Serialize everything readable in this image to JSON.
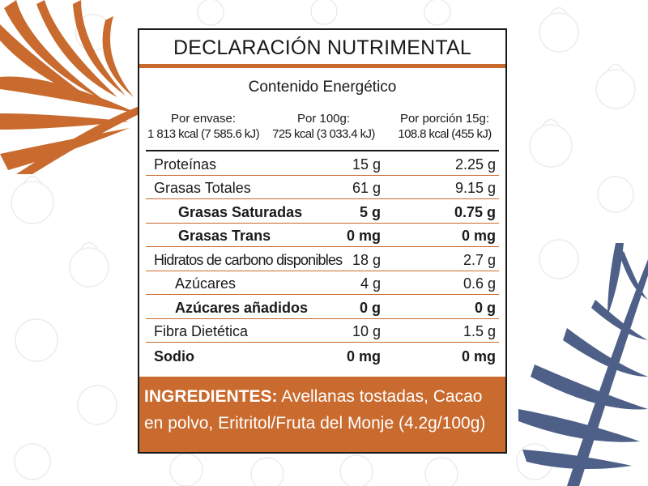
{
  "colors": {
    "accent": "#c96a2e",
    "leaf_orange": "#c96a2e",
    "leaf_blue": "#4e6088",
    "text": "#1a1a1a"
  },
  "title": "DECLARACIÓN NUTRIMENTAL",
  "energy": {
    "title": "Contenido Energético",
    "columns": [
      {
        "label": "Por envase:",
        "value": "1 813 kcal (7 585.6 kJ)"
      },
      {
        "label": "Por 100g:",
        "value": "725 kcal (3 033.4 kJ)"
      },
      {
        "label": "Por porción 15g:",
        "value": "108.8 kcal (455 kJ)"
      }
    ]
  },
  "nutrients": [
    {
      "label": "Proteínas",
      "per100": "15 g",
      "portion": "2.25 g"
    },
    {
      "label": "Grasas Totales",
      "per100": "61 g",
      "portion": "9.15 g"
    },
    {
      "label": "Grasas Saturadas",
      "per100": "5 g",
      "portion": "0.75 g"
    },
    {
      "label": "Grasas Trans",
      "per100": "0 mg",
      "portion": "0 mg"
    },
    {
      "label": "Hidratos de carbono disponibles",
      "per100": "18 g",
      "portion": "2.7 g"
    },
    {
      "label": "Azúcares",
      "per100": "4 g",
      "portion": "0.6 g"
    },
    {
      "label": "Azúcares añadidos",
      "per100": "0 g",
      "portion": "0 g"
    },
    {
      "label": "Fibra Dietética",
      "per100": "10 g",
      "portion": "1.5 g"
    },
    {
      "label": "Sodio",
      "per100": "0 mg",
      "portion": "0 mg"
    }
  ],
  "ingredients": {
    "heading": "INGREDIENTES:",
    "text": " Avellanas tostadas, Cacao en polvo, Eritritol/Fruta del Monje (4.2g/100g)"
  },
  "decor": {
    "left_leaf": "palm-leaf-icon",
    "right_leaf": "palm-leaf-icon",
    "pattern": "hazelnut-outline-icon"
  }
}
